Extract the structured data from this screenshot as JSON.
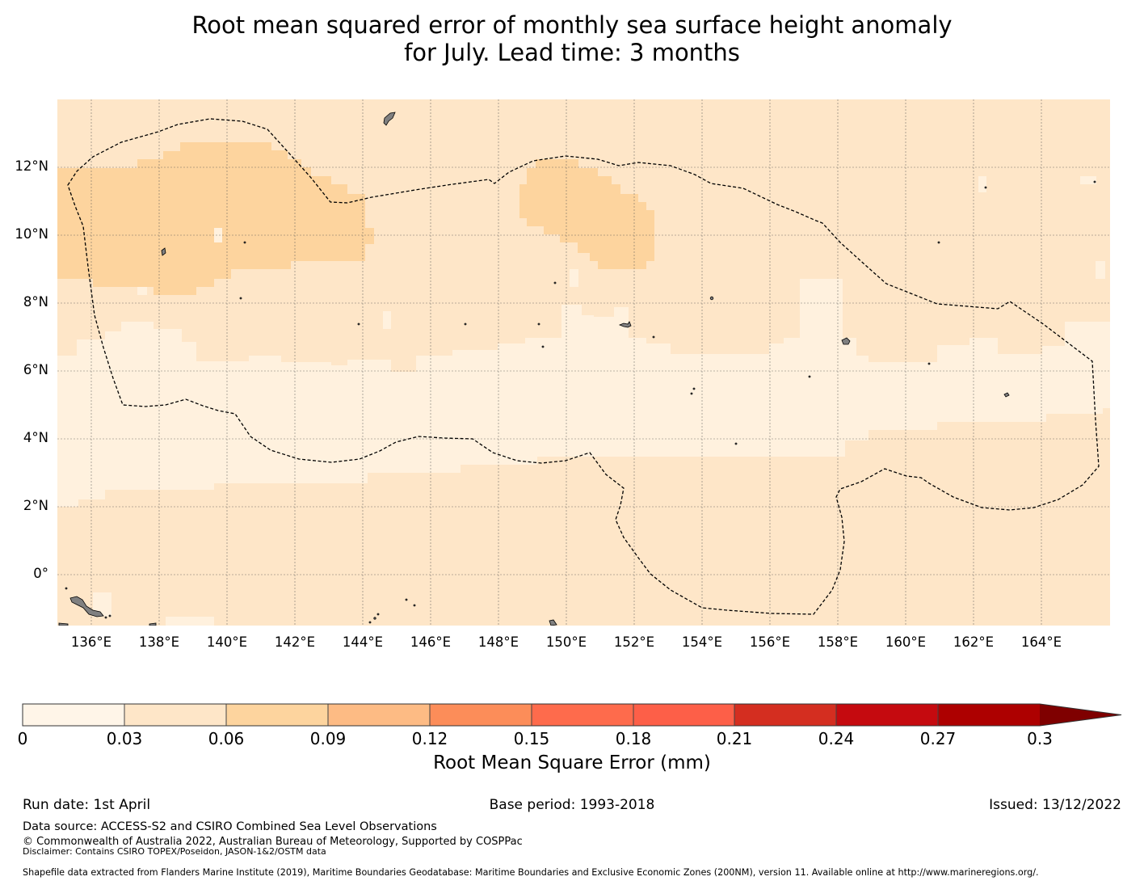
{
  "title_line1": "Root mean squared error of monthly sea surface height anomaly",
  "title_line2": "for July. Lead time: 3 months",
  "map": {
    "lon_range": [
      135,
      166
    ],
    "lat_range": [
      -1.5,
      14
    ],
    "lat_ticks": [
      "12°N",
      "10°N",
      "8°N",
      "6°N",
      "4°N",
      "2°N",
      "0°"
    ],
    "lon_ticks": [
      "136°E",
      "138°E",
      "140°E",
      "142°E",
      "144°E",
      "146°E",
      "148°E",
      "150°E",
      "152°E",
      "154°E",
      "156°E",
      "158°E",
      "160°E",
      "162°E",
      "164°E"
    ],
    "field_colors": {
      "bin_0_003": "#fff1de",
      "bin_003_006": "#fee6c8",
      "bin_006_009": "#fdd49e"
    },
    "land_color": "#808080",
    "boundary_style": "dashed"
  },
  "colorbar": {
    "title": "Root Mean Square Error (mm)",
    "tick_labels": [
      "0",
      "0.03",
      "0.06",
      "0.09",
      "0.12",
      "0.15",
      "0.18",
      "0.21",
      "0.24",
      "0.27",
      "0.3"
    ],
    "colors": [
      "#fff5e8",
      "#fee6c8",
      "#fdd49e",
      "#fdbb84",
      "#fc8d59",
      "#fe6b4c",
      "#fd5f48",
      "#fe4a36",
      "#d42e20",
      "#c50a0f",
      "#ad0000"
    ],
    "extend_color": "#7f0000",
    "extend": "max"
  },
  "footer": {
    "run_date": "Run date: 1st April",
    "base_period": "Base period: 1993-2018",
    "issued": "Issued: 13/12/2022",
    "data_source": "Data source: ACCESS-S2 and CSIRO Combined Sea Level Observations",
    "copyright": "© Commonwealth of Australia 2022, Australian Bureau of Meteorology, Supported by COSPPac",
    "disclaimer": "Disclaimer: Contains CSIRO TOPEX/Poseidon, JASON-1&2/OSTM data",
    "shapefile": "Shapefile data extracted from Flanders Marine Institute (2019), Maritime Boundaries Geodatabase: Maritime Boundaries and Exclusive Economic Zones (200NM), version 11. Available online at http://www.marineregions.org/."
  }
}
